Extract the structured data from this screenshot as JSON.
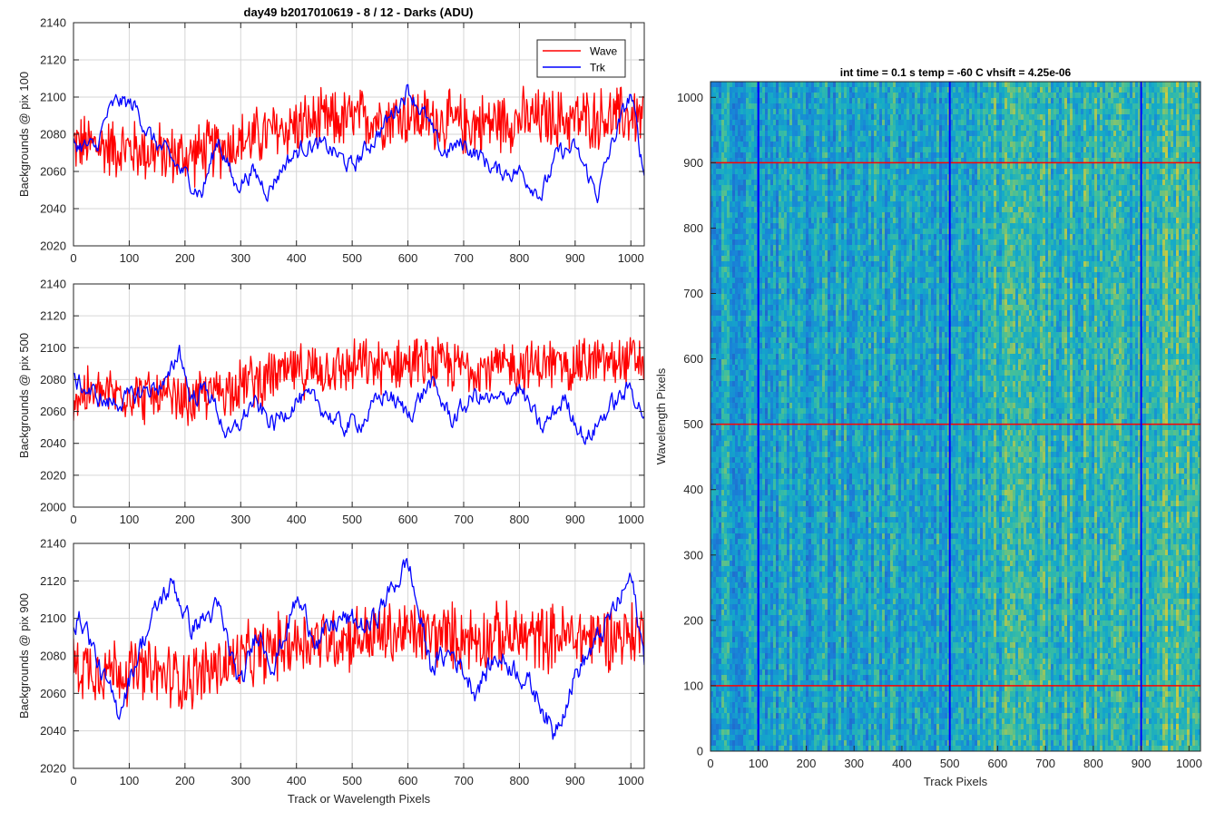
{
  "figure": {
    "title": "day49 b2017010619 - 8 / 12 - Darks (ADU)",
    "shared_xlabel": "Track or Wavelength Pixels"
  },
  "chart_data": [
    {
      "type": "line",
      "ylabel": "Backgrounds @ pix 100",
      "xlim": [
        0,
        1024
      ],
      "ylim": [
        2020,
        2140
      ],
      "xticks": [
        0,
        100,
        200,
        300,
        400,
        500,
        600,
        700,
        800,
        900,
        1000
      ],
      "yticks": [
        2020,
        2040,
        2060,
        2080,
        2100,
        2120,
        2140
      ],
      "grid": true,
      "legend": {
        "position": "top-right",
        "entries": [
          "Wave",
          "Trk"
        ]
      },
      "series": [
        {
          "name": "Wave",
          "color": "#ff0000",
          "noise_amp": 14,
          "x": [
            0,
            100,
            200,
            300,
            400,
            500,
            600,
            700,
            800,
            900,
            1024
          ],
          "y": [
            2075,
            2072,
            2068,
            2076,
            2085,
            2088,
            2090,
            2085,
            2088,
            2088,
            2090
          ]
        },
        {
          "name": "Trk",
          "color": "#0000ff",
          "noise_amp": 4,
          "x": [
            0,
            40,
            60,
            80,
            110,
            140,
            170,
            200,
            230,
            260,
            290,
            320,
            350,
            380,
            420,
            460,
            500,
            540,
            570,
            600,
            630,
            660,
            700,
            730,
            760,
            800,
            840,
            870,
            900,
            920,
            940,
            970,
            1000,
            1024
          ],
          "y": [
            2075,
            2072,
            2090,
            2098,
            2095,
            2078,
            2068,
            2058,
            2048,
            2078,
            2052,
            2060,
            2050,
            2065,
            2075,
            2072,
            2062,
            2078,
            2090,
            2105,
            2090,
            2070,
            2075,
            2068,
            2060,
            2060,
            2048,
            2070,
            2072,
            2060,
            2048,
            2078,
            2102,
            2058
          ]
        }
      ]
    },
    {
      "type": "line",
      "ylabel": "Backgrounds @ pix 500",
      "xlim": [
        0,
        1024
      ],
      "ylim": [
        2000,
        2140
      ],
      "xticks": [
        0,
        100,
        200,
        300,
        400,
        500,
        600,
        700,
        800,
        900,
        1000
      ],
      "yticks": [
        2000,
        2020,
        2040,
        2060,
        2080,
        2100,
        2120,
        2140
      ],
      "grid": true,
      "series": [
        {
          "name": "",
          "color": "#ff0000",
          "noise_amp": 14,
          "x": [
            0,
            100,
            200,
            300,
            400,
            500,
            600,
            700,
            800,
            900,
            1024
          ],
          "y": [
            2070,
            2072,
            2065,
            2078,
            2085,
            2088,
            2090,
            2088,
            2088,
            2090,
            2092
          ]
        },
        {
          "name": "",
          "color": "#0000ff",
          "noise_amp": 5,
          "x": [
            0,
            30,
            60,
            100,
            140,
            170,
            190,
            210,
            240,
            280,
            320,
            360,
            400,
            440,
            480,
            520,
            560,
            600,
            640,
            680,
            720,
            760,
            800,
            840,
            880,
            920,
            960,
            1000,
            1024
          ],
          "y": [
            2080,
            2072,
            2065,
            2068,
            2075,
            2078,
            2100,
            2068,
            2075,
            2042,
            2065,
            2052,
            2068,
            2065,
            2050,
            2055,
            2072,
            2058,
            2078,
            2055,
            2070,
            2065,
            2075,
            2048,
            2068,
            2042,
            2062,
            2075,
            2058
          ]
        }
      ]
    },
    {
      "type": "line",
      "ylabel": "Backgrounds @ pix 900",
      "xlabel": "Track or Wavelength Pixels",
      "xlim": [
        0,
        1024
      ],
      "ylim": [
        2020,
        2140
      ],
      "xticks": [
        0,
        100,
        200,
        300,
        400,
        500,
        600,
        700,
        800,
        900,
        1000
      ],
      "yticks": [
        2020,
        2040,
        2060,
        2080,
        2100,
        2120,
        2140
      ],
      "grid": true,
      "series": [
        {
          "name": "",
          "color": "#ff0000",
          "noise_amp": 15,
          "x": [
            0,
            100,
            200,
            300,
            400,
            500,
            600,
            700,
            800,
            900,
            1024
          ],
          "y": [
            2075,
            2072,
            2068,
            2078,
            2088,
            2090,
            2092,
            2090,
            2090,
            2090,
            2092
          ]
        },
        {
          "name": "",
          "color": "#0000ff",
          "noise_amp": 5,
          "x": [
            0,
            20,
            50,
            80,
            120,
            160,
            180,
            210,
            260,
            300,
            330,
            360,
            400,
            440,
            480,
            530,
            580,
            600,
            640,
            680,
            720,
            760,
            800,
            840,
            860,
            900,
            940,
            980,
            1000,
            1024
          ],
          "y": [
            2100,
            2098,
            2070,
            2050,
            2085,
            2112,
            2118,
            2095,
            2105,
            2062,
            2095,
            2075,
            2110,
            2088,
            2100,
            2095,
            2120,
            2130,
            2075,
            2082,
            2062,
            2080,
            2072,
            2055,
            2038,
            2070,
            2088,
            2110,
            2122,
            2078
          ]
        }
      ]
    },
    {
      "type": "heatmap",
      "title": "int time = 0.1 s   temp = -60 C   vhsift = 4.25e-06",
      "xlabel": "Track Pixels",
      "ylabel": "Wavelength Pixels",
      "xlim": [
        0,
        1024
      ],
      "ylim": [
        0,
        1024
      ],
      "xticks": [
        0,
        100,
        200,
        300,
        400,
        500,
        600,
        700,
        800,
        900,
        1000
      ],
      "yticks": [
        0,
        100,
        200,
        300,
        400,
        500,
        600,
        700,
        800,
        900,
        1000
      ],
      "colormap": "parula",
      "vertical_lines": {
        "color": "#0000ff",
        "x": [
          100,
          500,
          900
        ]
      },
      "horizontal_lines": {
        "color": "#ff0000",
        "y": [
          100,
          500,
          900
        ]
      }
    }
  ]
}
